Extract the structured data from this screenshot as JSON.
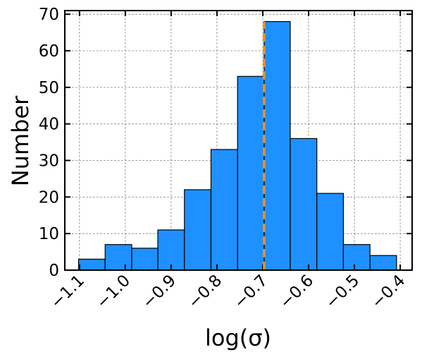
{
  "chart_data": {
    "type": "histogram",
    "xlabel": "log(σ)",
    "ylabel": "Number",
    "bins": [
      -1.102,
      -1.044,
      -0.986,
      -0.929,
      -0.871,
      -0.813,
      -0.755,
      -0.697,
      -0.64,
      -0.582,
      -0.524,
      -0.466,
      -0.408
    ],
    "values": [
      3,
      7,
      6,
      11,
      22,
      33,
      53,
      68,
      36,
      21,
      7,
      4
    ],
    "color": "#1e90ff",
    "edgecolor": "#000000",
    "vline": -0.697,
    "vline_color": "#ff8c1a",
    "xlim": [
      -1.132,
      -0.374
    ],
    "xticks": [
      {
        "value": -1.1,
        "label": "−1.1"
      },
      {
        "value": -1.0,
        "label": "−1.0"
      },
      {
        "value": -0.9,
        "label": "−0.9"
      },
      {
        "value": -0.8,
        "label": "−0.8"
      },
      {
        "value": -0.7,
        "label": "−0.7"
      },
      {
        "value": -0.6,
        "label": "−0.6"
      },
      {
        "value": -0.5,
        "label": "−0.5"
      },
      {
        "value": -0.4,
        "label": "−0.4"
      }
    ],
    "ylim": [
      0,
      71
    ],
    "yticks": [
      0,
      10,
      20,
      30,
      40,
      50,
      60,
      70
    ],
    "grid": true
  }
}
